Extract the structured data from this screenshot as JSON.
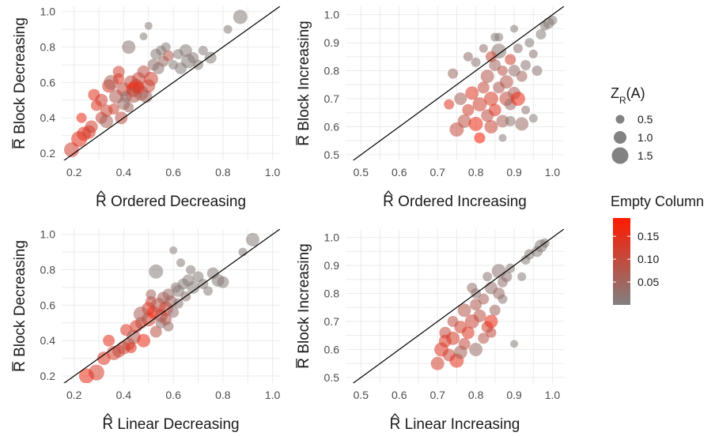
{
  "chart_data": [
    {
      "type": "scatter",
      "xlabel": "Ordered Decreasing",
      "ylabel": "Block Decreasing",
      "x_symbol": "R",
      "y_symbol": "R",
      "xlim": [
        0.15,
        1.03
      ],
      "ylim": [
        0.16,
        1.03
      ],
      "xticks": [
        "0.2",
        "0.4",
        "0.6",
        "0.8",
        "1.0"
      ],
      "yticks": [
        "0.2",
        "0.4",
        "0.6",
        "0.8",
        "1.0"
      ],
      "reference_line": "y = x",
      "points": [
        [
          0.19,
          0.22,
          1.3,
          0.12
        ],
        [
          0.22,
          0.28,
          1.4,
          0.15
        ],
        [
          0.24,
          0.31,
          1.2,
          0.14
        ],
        [
          0.26,
          0.32,
          1.1,
          0.13
        ],
        [
          0.27,
          0.35,
          1.0,
          0.12
        ],
        [
          0.23,
          0.4,
          0.7,
          0.16
        ],
        [
          0.29,
          0.47,
          0.8,
          0.14
        ],
        [
          0.28,
          0.53,
          0.9,
          0.15
        ],
        [
          0.31,
          0.5,
          1.0,
          0.12
        ],
        [
          0.31,
          0.4,
          0.9,
          0.1
        ],
        [
          0.33,
          0.44,
          1.0,
          0.11
        ],
        [
          0.34,
          0.58,
          1.1,
          0.13
        ],
        [
          0.35,
          0.6,
          1.3,
          0.06
        ],
        [
          0.37,
          0.52,
          1.2,
          0.07
        ],
        [
          0.38,
          0.62,
          0.8,
          0.14
        ],
        [
          0.38,
          0.66,
          0.9,
          0.12
        ],
        [
          0.4,
          0.56,
          1.2,
          0.1
        ],
        [
          0.4,
          0.48,
          1.0,
          0.04
        ],
        [
          0.41,
          0.52,
          0.9,
          0.03
        ],
        [
          0.42,
          0.8,
          1.1,
          0.02
        ],
        [
          0.43,
          0.6,
          1.2,
          0.09
        ],
        [
          0.44,
          0.56,
          1.3,
          0.18
        ],
        [
          0.45,
          0.58,
          1.2,
          0.16
        ],
        [
          0.46,
          0.62,
          1.1,
          0.1
        ],
        [
          0.47,
          0.54,
          1.3,
          0.08
        ],
        [
          0.48,
          0.66,
          1.0,
          0.09
        ],
        [
          0.49,
          0.52,
          1.0,
          0.05
        ],
        [
          0.5,
          0.58,
          1.1,
          0.1
        ],
        [
          0.51,
          0.62,
          1.2,
          0.12
        ],
        [
          0.52,
          0.7,
          0.9,
          0.03
        ],
        [
          0.53,
          0.76,
          0.8,
          0.01
        ],
        [
          0.54,
          0.68,
          0.9,
          0.02
        ],
        [
          0.55,
          0.78,
          0.7,
          0.01
        ],
        [
          0.56,
          0.72,
          0.8,
          0.04
        ],
        [
          0.57,
          0.8,
          0.6,
          0.01
        ],
        [
          0.58,
          0.75,
          0.8,
          0.08
        ],
        [
          0.48,
          0.86,
          0.4,
          0.01
        ],
        [
          0.5,
          0.92,
          0.4,
          0.01
        ],
        [
          0.6,
          0.7,
          0.6,
          0.01
        ],
        [
          0.62,
          0.76,
          0.7,
          0.01
        ],
        [
          0.63,
          0.68,
          0.9,
          0.01
        ],
        [
          0.65,
          0.78,
          1.0,
          0.01
        ],
        [
          0.66,
          0.72,
          1.2,
          0.01
        ],
        [
          0.68,
          0.74,
          0.8,
          0.01
        ],
        [
          0.7,
          0.7,
          0.7,
          0.01
        ],
        [
          0.72,
          0.78,
          0.6,
          0.01
        ],
        [
          0.75,
          0.74,
          0.9,
          0.01
        ],
        [
          0.82,
          0.9,
          0.5,
          0.01
        ],
        [
          0.87,
          0.97,
          1.2,
          0.01
        ],
        [
          0.33,
          0.38,
          1.1,
          0.06
        ],
        [
          0.36,
          0.45,
          0.8,
          0.11
        ],
        [
          0.39,
          0.4,
          1.0,
          0.09
        ],
        [
          0.42,
          0.46,
          0.7,
          0.05
        ],
        [
          0.44,
          0.53,
          1.4,
          0.07
        ],
        [
          0.46,
          0.57,
          0.9,
          0.14
        ]
      ]
    },
    {
      "type": "scatter",
      "xlabel": "Ordered Increasing",
      "ylabel": "Block Increasing",
      "x_symbol": "R",
      "y_symbol": "R",
      "xlim": [
        0.46,
        1.03
      ],
      "ylim": [
        0.48,
        1.03
      ],
      "xticks": [
        "0.5",
        "0.6",
        "0.7",
        "0.8",
        "0.9",
        "1.0"
      ],
      "yticks": [
        "0.5",
        "0.6",
        "0.7",
        "0.8",
        "0.9",
        "1.0"
      ],
      "reference_line": "y = x",
      "points": [
        [
          0.73,
          0.68,
          0.7,
          0.14
        ],
        [
          0.75,
          0.59,
          1.2,
          0.1
        ],
        [
          0.76,
          0.7,
          1.0,
          0.06
        ],
        [
          0.77,
          0.62,
          1.1,
          0.09
        ],
        [
          0.78,
          0.66,
          0.9,
          0.12
        ],
        [
          0.79,
          0.72,
          1.1,
          0.14
        ],
        [
          0.8,
          0.61,
          1.2,
          0.16
        ],
        [
          0.81,
          0.56,
          0.8,
          0.19
        ],
        [
          0.81,
          0.68,
          1.2,
          0.12
        ],
        [
          0.82,
          0.74,
          0.9,
          0.1
        ],
        [
          0.83,
          0.64,
          1.0,
          0.09
        ],
        [
          0.83,
          0.78,
          1.1,
          0.08
        ],
        [
          0.84,
          0.7,
          1.2,
          0.13
        ],
        [
          0.84,
          0.6,
          1.1,
          0.11
        ],
        [
          0.85,
          0.66,
          1.0,
          0.14
        ],
        [
          0.85,
          0.82,
          0.9,
          0.05
        ],
        [
          0.86,
          0.74,
          0.9,
          0.07
        ],
        [
          0.86,
          0.87,
          1.3,
          0.02
        ],
        [
          0.87,
          0.62,
          1.0,
          0.06
        ],
        [
          0.87,
          0.8,
          0.7,
          0.09
        ],
        [
          0.88,
          0.7,
          1.2,
          0.1
        ],
        [
          0.88,
          0.76,
          1.1,
          0.08
        ],
        [
          0.89,
          0.84,
          0.8,
          0.12
        ],
        [
          0.89,
          0.68,
          0.9,
          0.04
        ],
        [
          0.9,
          0.72,
          1.0,
          0.06
        ],
        [
          0.9,
          0.8,
          0.9,
          0.03
        ],
        [
          0.91,
          0.7,
          1.2,
          0.16
        ],
        [
          0.91,
          0.88,
          0.6,
          0.02
        ],
        [
          0.92,
          0.78,
          0.8,
          0.05
        ],
        [
          0.92,
          0.61,
          1.1,
          0.04
        ],
        [
          0.93,
          0.82,
          0.7,
          0.02
        ],
        [
          0.93,
          0.66,
          0.5,
          0.02
        ],
        [
          0.94,
          0.9,
          0.6,
          0.01
        ],
        [
          0.95,
          0.86,
          0.5,
          0.02
        ],
        [
          0.96,
          0.8,
          0.7,
          0.02
        ],
        [
          0.97,
          0.93,
          0.7,
          0.01
        ],
        [
          0.98,
          0.96,
          0.6,
          0.01
        ],
        [
          0.99,
          0.97,
          0.8,
          0.01
        ],
        [
          1.0,
          0.98,
          0.6,
          0.01
        ],
        [
          0.85,
          0.92,
          0.5,
          0.01
        ],
        [
          0.9,
          0.95,
          0.4,
          0.01
        ],
        [
          0.8,
          0.83,
          0.6,
          0.02
        ],
        [
          0.82,
          0.88,
          0.5,
          0.03
        ],
        [
          0.86,
          0.92,
          0.5,
          0.01
        ],
        [
          0.87,
          0.56,
          0.4,
          0.01
        ],
        [
          0.95,
          0.63,
          0.5,
          0.01
        ],
        [
          0.74,
          0.79,
          0.7,
          0.04
        ],
        [
          0.78,
          0.85,
          0.6,
          0.03
        ],
        [
          0.84,
          0.85,
          0.8,
          0.11
        ],
        [
          0.89,
          0.62,
          0.7,
          0.02
        ]
      ]
    },
    {
      "type": "scatter",
      "xlabel": "Linear Decreasing",
      "ylabel": "Block Decreasing",
      "x_symbol": "R",
      "y_symbol": "R",
      "xlim": [
        0.15,
        1.03
      ],
      "ylim": [
        0.16,
        1.03
      ],
      "xticks": [
        "0.2",
        "0.4",
        "0.6",
        "0.8",
        "1.0"
      ],
      "yticks": [
        "0.2",
        "0.4",
        "0.6",
        "0.8",
        "1.0"
      ],
      "reference_line": "y = x",
      "points": [
        [
          0.25,
          0.2,
          1.3,
          0.16
        ],
        [
          0.29,
          0.22,
          1.4,
          0.13
        ],
        [
          0.32,
          0.3,
          1.1,
          0.14
        ],
        [
          0.34,
          0.4,
          0.9,
          0.15
        ],
        [
          0.36,
          0.33,
          1.2,
          0.12
        ],
        [
          0.38,
          0.34,
          1.0,
          0.1
        ],
        [
          0.4,
          0.36,
          1.1,
          0.11
        ],
        [
          0.41,
          0.46,
          0.9,
          0.14
        ],
        [
          0.42,
          0.38,
          1.0,
          0.09
        ],
        [
          0.44,
          0.42,
          1.2,
          0.07
        ],
        [
          0.45,
          0.48,
          1.0,
          0.13
        ],
        [
          0.47,
          0.5,
          0.9,
          0.1
        ],
        [
          0.48,
          0.4,
          1.1,
          0.16
        ],
        [
          0.5,
          0.58,
          1.1,
          0.14
        ],
        [
          0.5,
          0.52,
          1.2,
          0.12
        ],
        [
          0.51,
          0.62,
          0.8,
          0.11
        ],
        [
          0.52,
          0.56,
          1.0,
          0.18
        ],
        [
          0.53,
          0.45,
          0.9,
          0.09
        ],
        [
          0.53,
          0.79,
          1.2,
          0.01
        ],
        [
          0.54,
          0.6,
          1.3,
          0.08
        ],
        [
          0.55,
          0.54,
          1.1,
          0.1
        ],
        [
          0.56,
          0.64,
          1.0,
          0.06
        ],
        [
          0.57,
          0.58,
          1.2,
          0.12
        ],
        [
          0.58,
          0.66,
          0.9,
          0.04
        ],
        [
          0.59,
          0.62,
          1.0,
          0.05
        ],
        [
          0.6,
          0.56,
          0.8,
          0.03
        ],
        [
          0.61,
          0.7,
          0.7,
          0.02
        ],
        [
          0.62,
          0.68,
          0.9,
          0.01
        ],
        [
          0.64,
          0.72,
          0.8,
          0.01
        ],
        [
          0.65,
          0.65,
          0.7,
          0.02
        ],
        [
          0.66,
          0.74,
          0.9,
          0.01
        ],
        [
          0.68,
          0.7,
          1.0,
          0.01
        ],
        [
          0.7,
          0.76,
          0.8,
          0.01
        ],
        [
          0.72,
          0.72,
          0.7,
          0.01
        ],
        [
          0.74,
          0.68,
          0.6,
          0.01
        ],
        [
          0.76,
          0.78,
          0.9,
          0.01
        ],
        [
          0.78,
          0.74,
          1.0,
          0.01
        ],
        [
          0.8,
          0.73,
          0.9,
          0.01
        ],
        [
          0.92,
          0.97,
          1.1,
          0.01
        ],
        [
          0.88,
          0.9,
          0.5,
          0.01
        ],
        [
          0.6,
          0.91,
          0.4,
          0.01
        ],
        [
          0.63,
          0.84,
          0.5,
          0.01
        ],
        [
          0.55,
          0.5,
          0.8,
          0.03
        ],
        [
          0.47,
          0.55,
          1.3,
          0.06
        ],
        [
          0.57,
          0.52,
          0.9,
          0.07
        ],
        [
          0.62,
          0.61,
          0.7,
          0.02
        ],
        [
          0.43,
          0.36,
          0.8,
          0.15
        ],
        [
          0.51,
          0.66,
          0.7,
          0.05
        ],
        [
          0.67,
          0.8,
          0.6,
          0.01
        ],
        [
          0.58,
          0.48,
          0.7,
          0.04
        ]
      ]
    },
    {
      "type": "scatter",
      "xlabel": "Linear Increasing",
      "ylabel": "Block Increasing",
      "x_symbol": "R",
      "y_symbol": "R",
      "xlim": [
        0.46,
        1.03
      ],
      "ylim": [
        0.48,
        1.03
      ],
      "xticks": [
        "0.5",
        "0.6",
        "0.7",
        "0.8",
        "0.9",
        "1.0"
      ],
      "yticks": [
        "0.5",
        "0.6",
        "0.7",
        "0.8",
        "0.9",
        "1.0"
      ],
      "reference_line": "y = x",
      "points": [
        [
          0.7,
          0.55,
          1.1,
          0.12
        ],
        [
          0.71,
          0.6,
          1.2,
          0.14
        ],
        [
          0.72,
          0.66,
          0.9,
          0.1
        ],
        [
          0.73,
          0.58,
          1.0,
          0.11
        ],
        [
          0.74,
          0.64,
          1.1,
          0.13
        ],
        [
          0.74,
          0.7,
          0.8,
          0.09
        ],
        [
          0.75,
          0.56,
          1.2,
          0.15
        ],
        [
          0.76,
          0.68,
          1.0,
          0.12
        ],
        [
          0.77,
          0.62,
          0.9,
          0.1
        ],
        [
          0.77,
          0.74,
          1.1,
          0.08
        ],
        [
          0.78,
          0.66,
          1.0,
          0.14
        ],
        [
          0.79,
          0.7,
          1.2,
          0.11
        ],
        [
          0.8,
          0.6,
          1.1,
          0.04
        ],
        [
          0.8,
          0.76,
          0.9,
          0.07
        ],
        [
          0.81,
          0.72,
          1.0,
          0.09
        ],
        [
          0.82,
          0.78,
          0.8,
          0.06
        ],
        [
          0.83,
          0.68,
          0.9,
          0.12
        ],
        [
          0.84,
          0.82,
          1.0,
          0.03
        ],
        [
          0.84,
          0.7,
          1.1,
          0.16
        ],
        [
          0.85,
          0.74,
          0.8,
          0.05
        ],
        [
          0.86,
          0.8,
          0.9,
          0.04
        ],
        [
          0.86,
          0.88,
          1.2,
          0.02
        ],
        [
          0.87,
          0.84,
          0.7,
          0.03
        ],
        [
          0.88,
          0.86,
          0.8,
          0.02
        ],
        [
          0.9,
          0.62,
          0.4,
          0.01
        ],
        [
          0.92,
          0.86,
          0.5,
          0.01
        ],
        [
          0.93,
          0.92,
          0.6,
          0.01
        ],
        [
          0.94,
          0.94,
          0.7,
          0.01
        ],
        [
          0.96,
          0.95,
          0.8,
          0.01
        ],
        [
          0.97,
          0.97,
          1.0,
          0.01
        ],
        [
          0.98,
          0.98,
          0.6,
          0.01
        ],
        [
          0.79,
          0.82,
          0.7,
          0.03
        ],
        [
          0.82,
          0.64,
          0.8,
          0.08
        ],
        [
          0.76,
          0.59,
          1.1,
          0.06
        ],
        [
          0.84,
          0.66,
          0.7,
          0.1
        ],
        [
          0.72,
          0.63,
          1.0,
          0.13
        ],
        [
          0.8,
          0.8,
          0.7,
          0.02
        ],
        [
          0.87,
          0.78,
          0.6,
          0.02
        ],
        [
          0.89,
          0.89,
          0.6,
          0.01
        ],
        [
          0.83,
          0.86,
          0.6,
          0.02
        ]
      ]
    }
  ],
  "legend_size": {
    "title_main": "Z",
    "title_sub": "R",
    "title_tail": "(A)",
    "items": [
      {
        "label": "0.5",
        "value": 0.5
      },
      {
        "label": "1.0",
        "value": 1.0
      },
      {
        "label": "1.5",
        "value": 1.5
      }
    ]
  },
  "legend_color": {
    "title": "Empty Column",
    "low_color": "#808080",
    "high_color": "#ff1a00",
    "range": [
      0.0,
      0.19
    ],
    "ticks": [
      {
        "label": "0.15",
        "value": 0.15
      },
      {
        "label": "0.10",
        "value": 0.1
      },
      {
        "label": "0.05",
        "value": 0.05
      }
    ]
  }
}
